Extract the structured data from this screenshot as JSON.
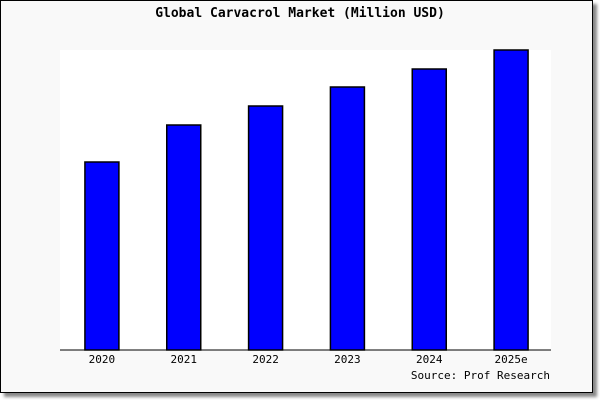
{
  "chart_data": {
    "type": "bar",
    "title": "Global Carvacrol Market (Million USD)",
    "source": "Source: Prof Research",
    "categories": [
      "2020",
      "2021",
      "2022",
      "2023",
      "2024",
      "2025e"
    ],
    "values": [
      188,
      225,
      244,
      263,
      281,
      300
    ],
    "ylim": [
      0,
      300
    ],
    "xlabel": "",
    "ylabel": "",
    "grid": false,
    "bar_color": "#0000ff",
    "bar_edge_color": "#000000",
    "plot_background": "#ffffff",
    "background": "#f9f9f9"
  }
}
